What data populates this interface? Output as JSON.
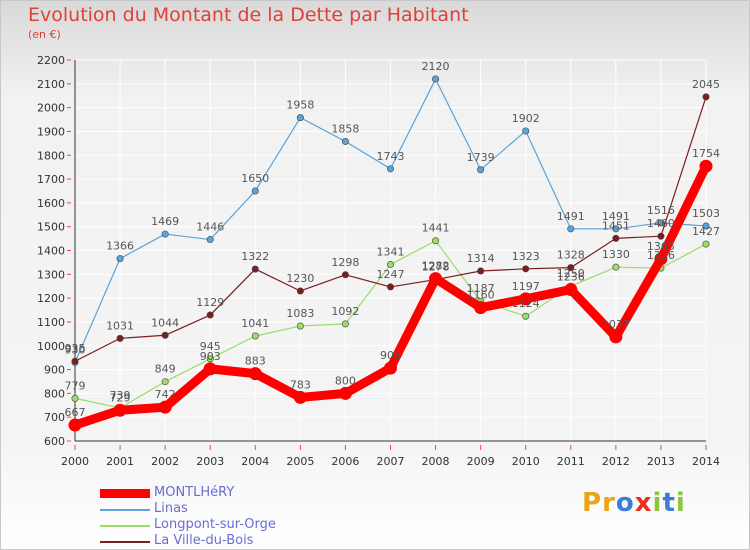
{
  "title": "Evolution du Montant de la Dette par Habitant",
  "subtitle": "(en €)",
  "logo": {
    "text": "Proxiti",
    "colors": [
      "#e8a317",
      "#e8a317",
      "#3b7dd8",
      "#e8301c",
      "#8cc63f",
      "#3b7dd8",
      "#8cc63f"
    ]
  },
  "chart_data": {
    "type": "line",
    "x": [
      2000,
      2001,
      2002,
      2003,
      2004,
      2005,
      2006,
      2007,
      2008,
      2009,
      2010,
      2011,
      2012,
      2013,
      2014
    ],
    "ylim": [
      600,
      2200
    ],
    "yticks": [
      600,
      700,
      800,
      900,
      1000,
      1100,
      1200,
      1300,
      1400,
      1500,
      1600,
      1700,
      1800,
      1900,
      2000,
      2100,
      2200
    ],
    "grid": true,
    "legend_position": "bottom-left",
    "series": [
      {
        "name": "Linas",
        "color": "#5ba3d8",
        "values": [
          930,
          1366,
          1469,
          1446,
          1650,
          1958,
          1858,
          1743,
          2120,
          1739,
          1902,
          1491,
          1491,
          1516,
          1503
        ]
      },
      {
        "name": "Longpont-sur-Orge",
        "color": "#99dd6a",
        "values": [
          779,
          739,
          849,
          945,
          1041,
          1083,
          1092,
          1341,
          1441,
          1187,
          1124,
          1250,
          1330,
          1326,
          1427
        ]
      },
      {
        "name": "La Ville-du-Bois",
        "color": "#7a1e1e",
        "values": [
          935,
          1031,
          1044,
          1129,
          1322,
          1230,
          1298,
          1247,
          1278,
          1314,
          1323,
          1328,
          1451,
          1460,
          2045
        ]
      },
      {
        "name": "MONTLHéRY",
        "color": "#ff0000",
        "values": [
          667,
          729,
          742,
          903,
          883,
          783,
          800,
          906,
          1282,
          1160,
          1197,
          1236,
          1037,
          1365,
          1754
        ]
      }
    ]
  }
}
